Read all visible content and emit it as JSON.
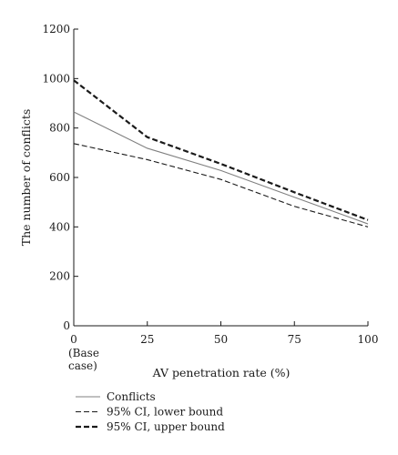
{
  "chart_data": {
    "type": "line",
    "x": [
      0,
      25,
      50,
      75,
      100
    ],
    "x_tick_labels": [
      "0",
      "25",
      "50",
      "75",
      "100"
    ],
    "x_tick_sublabel": [
      "(Base",
      "case)"
    ],
    "xlabel": "AV penetration rate (%)",
    "ylabel": "The number of conflicts",
    "ylim": [
      0,
      1200
    ],
    "y_ticks": [
      0,
      200,
      400,
      600,
      800,
      1000,
      1200
    ],
    "grid": false,
    "legend_position": "bottom-left, below plot",
    "series": [
      {
        "name": "Conflicts",
        "style": "solid-thin",
        "color": "#808080",
        "values": [
          865,
          718,
          628,
          520,
          412
        ]
      },
      {
        "name": "95% CI, lower bound",
        "style": "dashed-thin",
        "color": "#1a1a1a",
        "values": [
          737,
          672,
          592,
          483,
          400
        ]
      },
      {
        "name": "95% CI, upper bound",
        "style": "dashed-thick",
        "color": "#1a1a1a",
        "values": [
          993,
          763,
          655,
          540,
          428
        ]
      }
    ]
  }
}
